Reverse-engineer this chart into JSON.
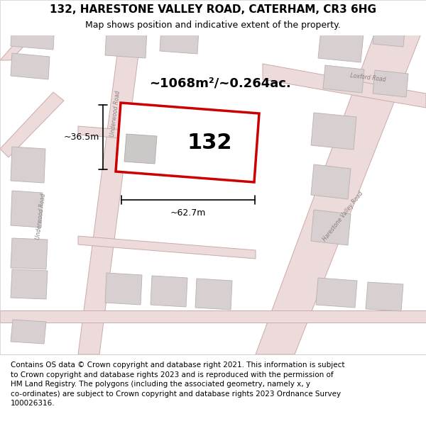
{
  "title": "132, HARESTONE VALLEY ROAD, CATERHAM, CR3 6HG",
  "subtitle": "Map shows position and indicative extent of the property.",
  "footer_text": "Contains OS data © Crown copyright and database right 2021. This information is subject\nto Crown copyright and database rights 2023 and is reproduced with the permission of\nHM Land Registry. The polygons (including the associated geometry, namely x, y\nco-ordinates) are subject to Crown copyright and database rights 2023 Ordnance Survey\n100026316.",
  "map_bg": "#f2eded",
  "road_fill": "#eddada",
  "road_edge": "#ccaaaa",
  "building_fill": "#d8d0d0",
  "building_edge": "#b8b0b0",
  "highlight_fill": "#ffffff",
  "highlight_edge": "#cc0000",
  "highlight_lw": 2.5,
  "label_132": "132",
  "area_label": "~1068m²/~0.264ac.",
  "width_label": "~62.7m",
  "height_label": "~36.5m",
  "loxford_road_label": "Loxford Road",
  "underwood_road_label1": "Underwood Road",
  "underwood_road_label2": "Underwood Road",
  "harestone_label": "Harestone Valley Road",
  "title_fontsize": 11,
  "subtitle_fontsize": 9,
  "footer_fontsize": 7.5
}
